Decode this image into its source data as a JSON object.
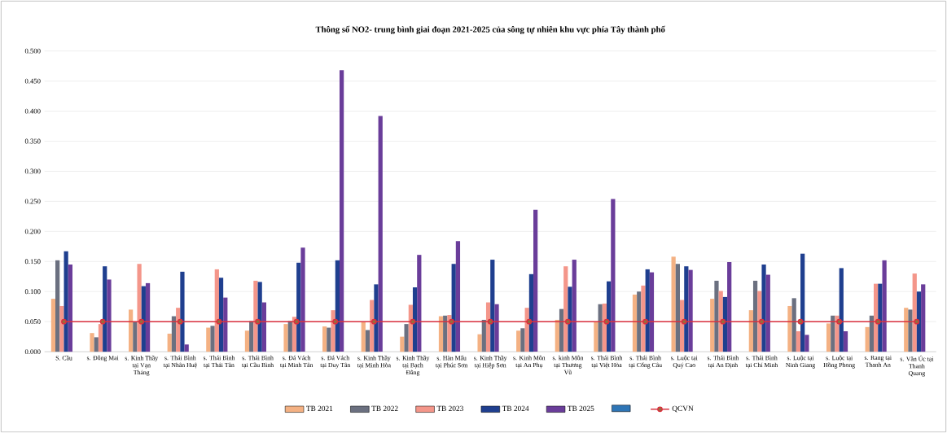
{
  "chart_data": {
    "type": "bar",
    "title": "Thông số NO2- trung bình giai đoạn 2021-2025 của sông tự nhiên khu vực phía Tây thành phố",
    "categories": [
      "S. Cầu",
      "s. Đông Mai",
      "s. Kinh Thầy tại Vạn Tháng",
      "s. Thái Bình tại Nhân Huệ",
      "s. Thái Bình tại Thái Tân",
      "s. Thái Bình tại Cầu Bình",
      "s. Đá Vách tại Minh Tân",
      "s. Đá Vách tại Duy Tân",
      "s. Kinh Thầy tại Minh Hòa",
      "s. Kinh Thầy tại Bạch Đằng",
      "s. Hàn Mấu tại Phúc Sơn",
      "s. Kinh Thầy tại Hiệp Sơn",
      "s. Kinh Môn tại An Phụ",
      "s. kinh Môn tại Thương Vũ",
      "s. Thái Bình tại Việt Hòa",
      "s. Thái Bình tại Cống Câu",
      "s. Luộc tại Quý Cao",
      "s. Thái Bình tại An Định",
      "s. Thái Bình tại Chí Minh",
      "s. Luộc tại Ninh Giang",
      "s. Luộc tại Hồng Phong",
      "s. Rang tại Thanh An",
      "s. Văn Úc tại Thanh Quang"
    ],
    "series": [
      {
        "name": "TB 2021",
        "color": "#f4b183",
        "values": [
          0.088,
          0.031,
          0.07,
          0.03,
          0.04,
          0.035,
          0.046,
          0.042,
          0.05,
          0.025,
          0.059,
          0.029,
          0.035,
          0.053,
          0.049,
          0.095,
          0.158,
          0.088,
          0.069,
          0.076,
          0.047,
          0.041,
          0.073
        ]
      },
      {
        "name": "TB 2022",
        "color": "#6b7080",
        "values": [
          0.152,
          0.024,
          0.049,
          0.059,
          0.043,
          0.051,
          0.051,
          0.04,
          0.036,
          0.046,
          0.06,
          0.053,
          0.039,
          0.071,
          0.079,
          0.1,
          0.146,
          0.118,
          0.118,
          0.089,
          0.06,
          0.06,
          0.07
        ]
      },
      {
        "name": "TB 2023",
        "color": "#f4968a",
        "values": [
          0.076,
          0.046,
          0.146,
          0.073,
          0.137,
          0.118,
          0.058,
          0.069,
          0.086,
          0.078,
          0.061,
          0.082,
          0.073,
          0.142,
          0.08,
          0.11,
          0.086,
          0.101,
          0.101,
          0.034,
          0.06,
          0.113,
          0.13
        ]
      },
      {
        "name": "TB 2024",
        "color": "#1f3f8f",
        "values": [
          0.167,
          0.142,
          0.109,
          0.133,
          0.123,
          0.116,
          0.148,
          0.152,
          0.112,
          0.107,
          0.146,
          0.153,
          0.129,
          0.108,
          0.117,
          0.137,
          0.142,
          0.091,
          0.145,
          0.163,
          0.139,
          0.113,
          0.1
        ]
      },
      {
        "name": "TB 2025",
        "color": "#6a3d9a",
        "values": [
          0.145,
          0.12,
          0.114,
          0.012,
          0.09,
          0.082,
          0.173,
          0.468,
          0.392,
          0.161,
          0.184,
          0.079,
          0.236,
          0.153,
          0.254,
          0.132,
          0.136,
          0.149,
          0.128,
          0.028,
          0.034,
          0.152,
          0.112
        ]
      },
      {
        "color": "#2e75b6",
        "values": [
          null,
          null,
          null,
          null,
          null,
          null,
          null,
          null,
          null,
          null,
          null,
          null,
          null,
          null,
          null,
          null,
          null,
          null,
          null,
          null,
          null,
          null,
          null
        ]
      },
      {
        "name": "QCVN",
        "type": "line",
        "color": "#d9303e",
        "marker": "circle",
        "line_style": "solid",
        "values": [
          0.05,
          0.05,
          0.05,
          0.05,
          0.05,
          0.05,
          0.05,
          0.05,
          0.05,
          0.05,
          0.05,
          0.05,
          0.05,
          0.05,
          0.05,
          0.05,
          0.05,
          0.05,
          0.05,
          0.05,
          0.05,
          0.05,
          0.05
        ]
      }
    ],
    "ylim": [
      0,
      0.5
    ],
    "yticks": [
      {
        "value": 0,
        "label": "0.000"
      },
      {
        "value": 0.05,
        "label": "0.050"
      },
      {
        "value": 0.1,
        "label": "0.100"
      },
      {
        "value": 0.15,
        "label": "0.150"
      },
      {
        "value": 0.2,
        "label": "0.200"
      },
      {
        "value": 0.25,
        "label": "0.250"
      },
      {
        "value": 0.3,
        "label": "0.300"
      },
      {
        "value": 0.35,
        "label": "0.350"
      },
      {
        "value": 0.4,
        "label": "0.400"
      },
      {
        "value": 0.45,
        "label": "0.450"
      },
      {
        "value": 0.5,
        "label": "0.500"
      }
    ],
    "grid": "y",
    "legend": "bottom"
  }
}
